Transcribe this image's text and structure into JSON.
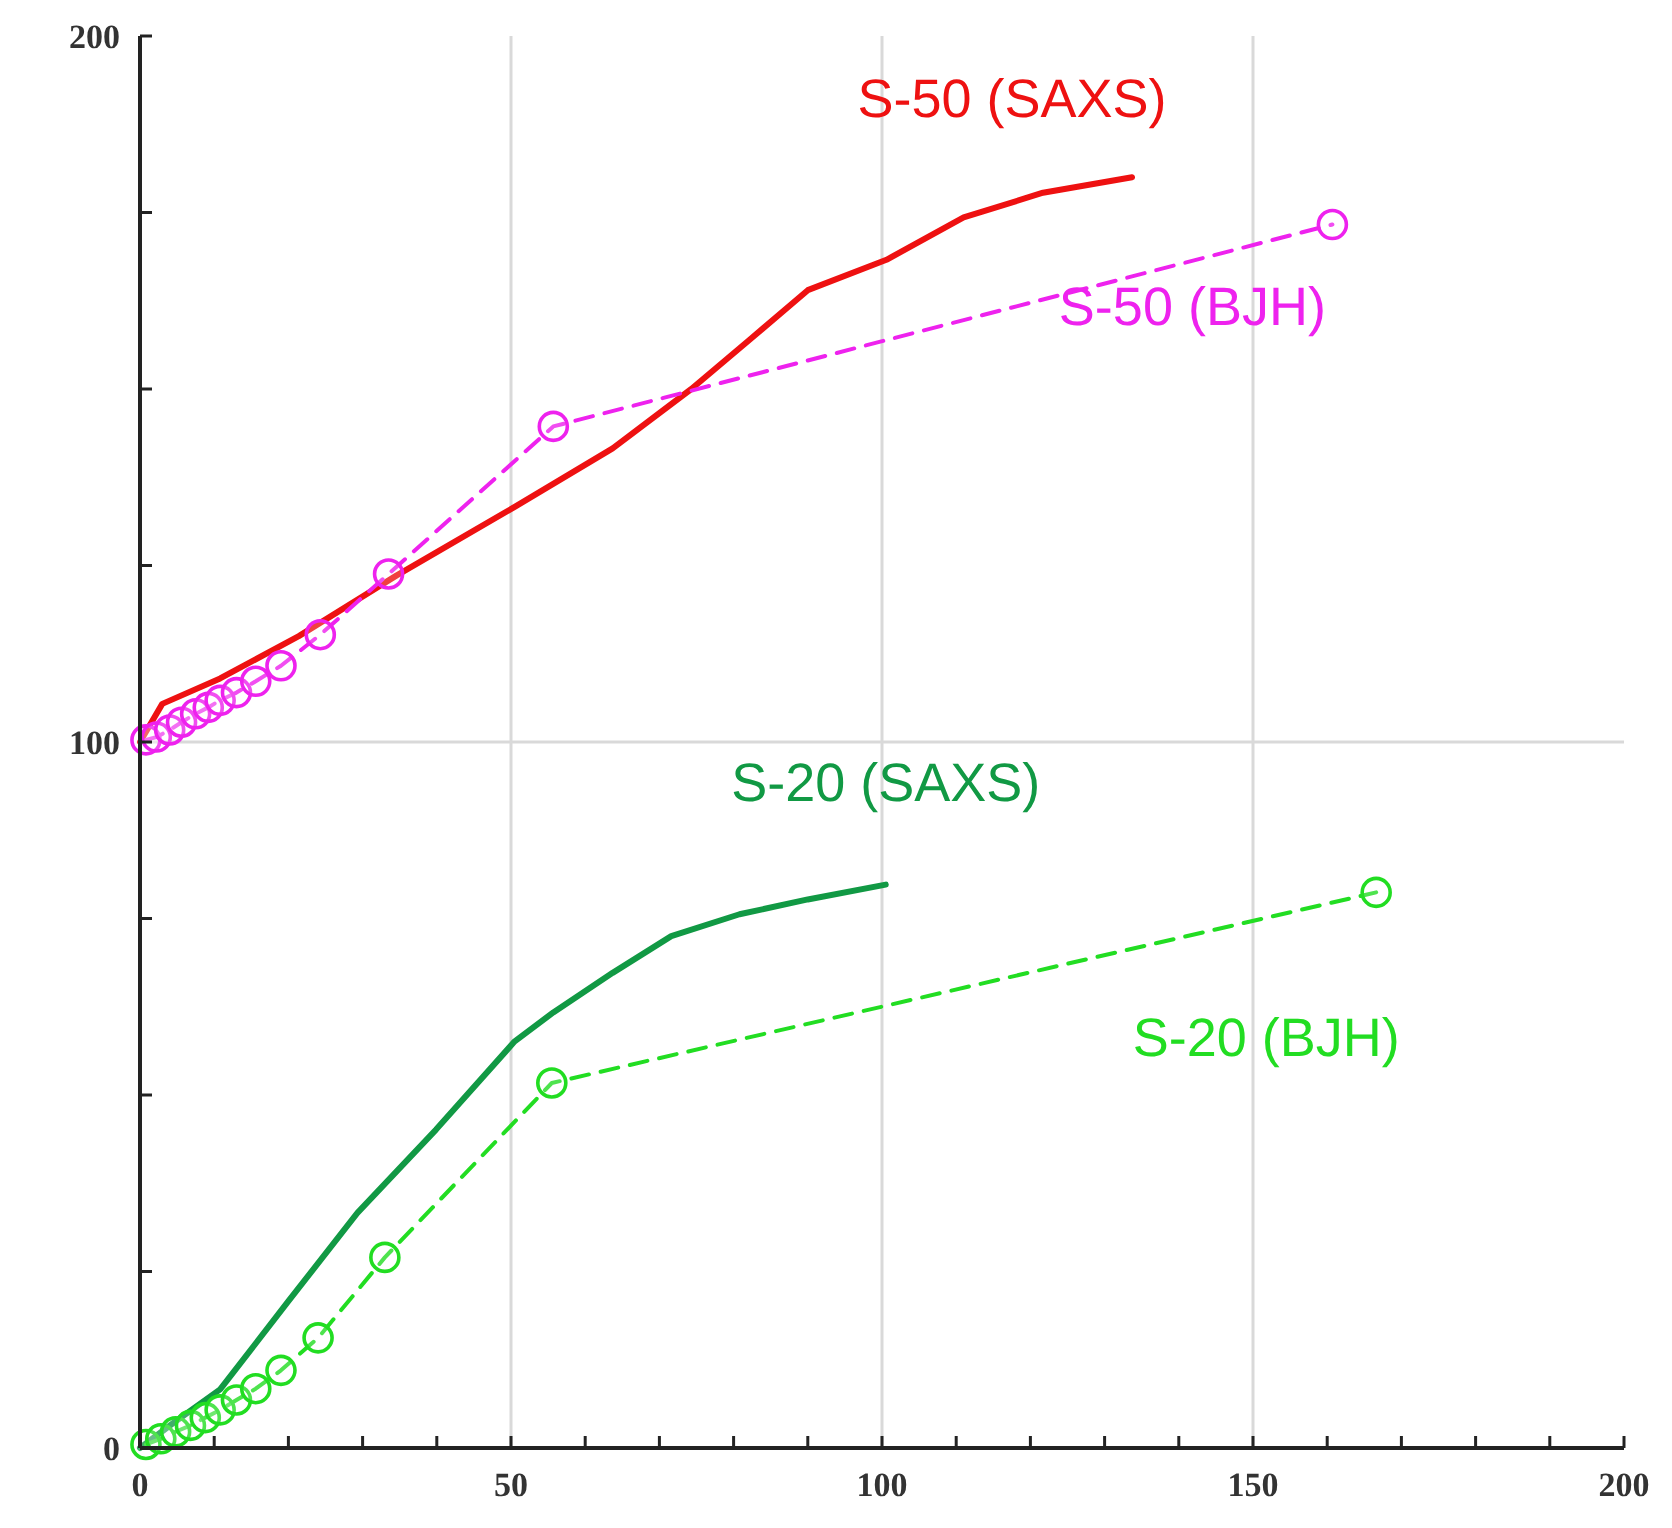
{
  "chart_data": {
    "type": "line",
    "xlim": [
      0,
      200
    ],
    "ylim": [
      0,
      200
    ],
    "xticks": [
      0,
      {
        "value": 10,
        "label": null
      },
      {
        "value": 20,
        "label": null
      },
      {
        "value": 30,
        "label": null
      },
      {
        "value": 40,
        "label": null
      },
      50,
      {
        "value": 60,
        "label": null
      },
      {
        "value": 70,
        "label": null
      },
      {
        "value": 80,
        "label": null
      },
      {
        "value": 90,
        "label": null
      },
      100,
      {
        "value": 110,
        "label": null
      },
      {
        "value": 120,
        "label": null
      },
      {
        "value": 130,
        "label": null
      },
      {
        "value": 140,
        "label": null
      },
      150,
      {
        "value": 160,
        "label": null
      },
      {
        "value": 170,
        "label": null
      },
      {
        "value": 180,
        "label": null
      },
      {
        "value": 190,
        "label": null
      },
      200
    ],
    "yticks": [
      0,
      {
        "value": 25,
        "label": null
      },
      {
        "value": 50,
        "label": null
      },
      {
        "value": 75,
        "label": null
      },
      100,
      {
        "value": 125,
        "label": null
      },
      {
        "value": 150,
        "label": null
      },
      {
        "value": 175,
        "label": null
      },
      200
    ],
    "grid": true,
    "series": [
      {
        "name": "S-50 (SAXS)",
        "color": "#ee1111",
        "marker": "none",
        "line_style": "solid",
        "x": [
          0,
          3,
          10.8,
          21.4,
          34.6,
          50.5,
          63.7,
          74.3,
          82.2,
          90,
          100.6,
          111,
          121.7,
          133.7
        ],
        "values": [
          100,
          105.4,
          109,
          115,
          123.6,
          133.3,
          141.6,
          150,
          157,
          164,
          168.3,
          174.3,
          177.8,
          180
        ]
      },
      {
        "name": "S-50 (BJH)",
        "color": "#ee22ee",
        "marker": "circle",
        "line_style": "dashed",
        "x": [
          0.8,
          2.2,
          4,
          5.6,
          7.5,
          9.2,
          10.8,
          13,
          15.6,
          19,
          24.3,
          33.5,
          55.7,
          160.7
        ],
        "values": [
          100.3,
          100.7,
          101.7,
          102.8,
          104,
          104.9,
          105.9,
          107,
          108.6,
          110.8,
          115.2,
          123.8,
          144.7,
          173.3
        ]
      },
      {
        "name": "S-20 (SAXS)",
        "color": "#119944",
        "marker": "none",
        "line_style": "solid",
        "x": [
          0,
          4.3,
          10.8,
          20,
          29.3,
          39.9,
          50.5,
          55.7,
          63.7,
          71.6,
          80.8,
          90,
          100.5
        ],
        "values": [
          0,
          3.4,
          8.3,
          20.8,
          33.3,
          45.1,
          57.6,
          61.7,
          67.3,
          72.5,
          75.6,
          77.7,
          79.8
        ]
      },
      {
        "name": "S-20 (BJH)",
        "color": "#22dd22",
        "marker": "circle",
        "line_style": "dashed",
        "x": [
          0.8,
          2.8,
          4.8,
          6.8,
          8.8,
          10.8,
          13,
          15.6,
          19,
          24,
          33,
          55.5,
          166.6
        ],
        "values": [
          0.5,
          1.3,
          2.3,
          3.2,
          4.3,
          5.4,
          6.8,
          8.4,
          11,
          15.6,
          27,
          51.7,
          78.7
        ]
      }
    ]
  }
}
